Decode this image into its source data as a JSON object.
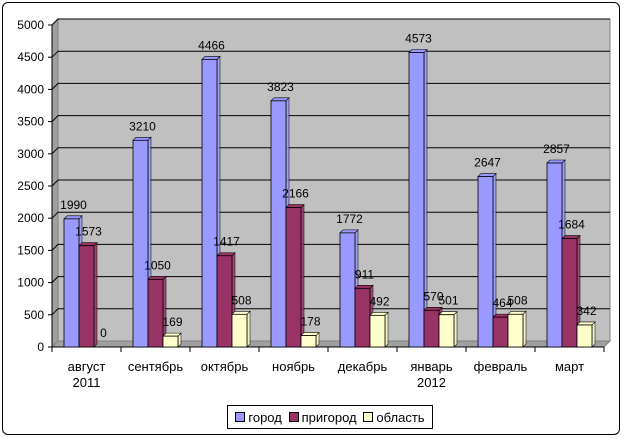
{
  "chart_data": {
    "type": "bar",
    "title": "",
    "xlabel": "",
    "ylabel": "",
    "ylim": [
      0,
      5000
    ],
    "yticks": [
      0,
      500,
      1000,
      1500,
      2000,
      2500,
      3000,
      3500,
      4000,
      4500,
      5000
    ],
    "grid": true,
    "legend_position": "bottom",
    "plot_background": "#c0c0c0",
    "categories": [
      [
        "август",
        "2011"
      ],
      [
        "сентябрь"
      ],
      [
        "октябрь"
      ],
      [
        "ноябрь"
      ],
      [
        "декабрь"
      ],
      [
        "январь",
        "2012"
      ],
      [
        "февраль"
      ],
      [
        "март"
      ]
    ],
    "series": [
      {
        "name": "город",
        "color": "#9999ff",
        "values": [
          1990,
          3210,
          4466,
          3823,
          1772,
          4573,
          2647,
          2857
        ]
      },
      {
        "name": "пригород",
        "color": "#993366",
        "values": [
          1573,
          1050,
          1417,
          2166,
          911,
          570,
          464,
          1684
        ]
      },
      {
        "name": "область",
        "color": "#ffffcc",
        "values": [
          0,
          169,
          508,
          178,
          492,
          501,
          508,
          342
        ]
      }
    ]
  }
}
